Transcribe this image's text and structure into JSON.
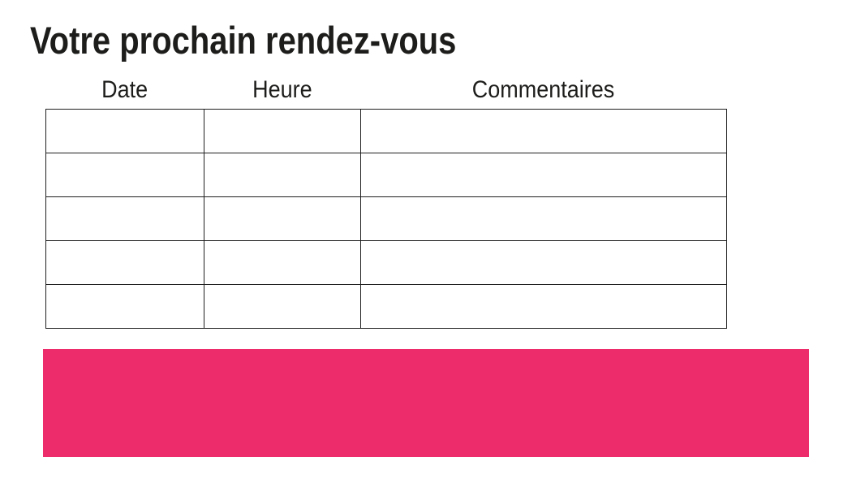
{
  "page_title": "Votre prochain rendez-vous",
  "appointments_table": {
    "headers": [
      "Date",
      "Heure",
      "Commentaires"
    ],
    "row_count": 5,
    "rows": [
      [
        "",
        "",
        ""
      ],
      [
        "",
        "",
        ""
      ],
      [
        "",
        "",
        ""
      ],
      [
        "",
        "",
        ""
      ],
      [
        "",
        "",
        ""
      ]
    ]
  },
  "banner": {
    "text": "",
    "background_color": "#ED2D6B"
  },
  "colors": {
    "text": "#1d1d1b",
    "table_border": "#1f1f1f",
    "page_background": "#ffffff"
  }
}
